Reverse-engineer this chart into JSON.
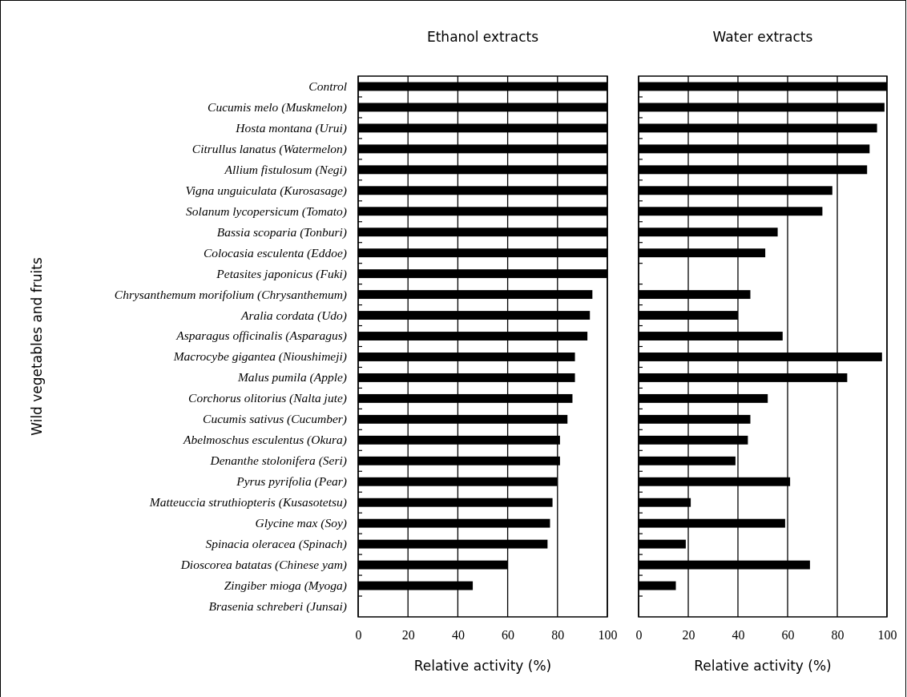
{
  "chart_data": [
    {
      "type": "bar",
      "orientation": "horizontal",
      "title": "Ethanol extracts",
      "xlabel": "Relative activity (%)",
      "ylabel": "Wild vegetables and fruits",
      "categories": [
        "Control",
        "Cucumis melo (Muskmelon)",
        "Hosta montana (Urui)",
        "Citrullus lanatus (Watermelon)",
        "Allium fistulosum (Negi)",
        "Vigna unguiculata (Kurosasage)",
        "Solanum lycopersicum (Tomato)",
        "Bassia scoparia (Tonburi)",
        "Colocasia esculenta (Eddoe)",
        "Petasites japonicus (Fuki)",
        "Chrysanthemum morifolium (Chrysanthemum)",
        "Aralia cordata (Udo)",
        "Asparagus officinalis (Asparagus)",
        "Macrocybe gigantea (Nioushimeji)",
        "Malus pumila (Apple)",
        "Corchorus olitorius (Nalta jute)",
        "Cucumis sativus (Cucumber)",
        "Abelmoschus esculentus (Okura)",
        "Denanthe stolonifera (Seri)",
        "Pyrus pyrifolia (Pear)",
        "Matteuccia struthiopteris (Kusasotetsu)",
        "Glycine max (Soy)",
        "Spinacia oleracea (Spinach)",
        "Dioscorea batatas (Chinese yam)",
        "Zingiber mioga (Myoga)",
        "Brasenia schreberi (Junsai)"
      ],
      "values": [
        100,
        100,
        100,
        100,
        100,
        100,
        100,
        100,
        100,
        100,
        94,
        93,
        92,
        87,
        87,
        86,
        84,
        81,
        81,
        80,
        78,
        77,
        76,
        60,
        46,
        0
      ],
      "color": "#000000",
      "xlim": [
        0,
        100
      ],
      "xticks": [
        0,
        20,
        40,
        60,
        80,
        100
      ],
      "grid": "x"
    },
    {
      "type": "bar",
      "orientation": "horizontal",
      "title": "Water extracts",
      "xlabel": "Relative activity (%)",
      "tick_labels": "x",
      "categories": [
        null,
        null,
        null,
        null,
        null,
        null,
        null,
        null,
        null,
        null,
        null,
        null,
        null,
        null,
        null,
        null,
        null,
        null,
        null,
        null,
        null,
        null,
        null,
        null,
        null,
        null
      ],
      "values": [
        100,
        99,
        96,
        93,
        92,
        78,
        74,
        56,
        51,
        0,
        45,
        40,
        58,
        98,
        84,
        52,
        45,
        44,
        39,
        61,
        21,
        59,
        19,
        69,
        15,
        0
      ],
      "color": "#000000",
      "xlim": [
        0,
        100
      ],
      "xticks": [
        0,
        20,
        40,
        60,
        80,
        100
      ],
      "grid": "x"
    }
  ]
}
